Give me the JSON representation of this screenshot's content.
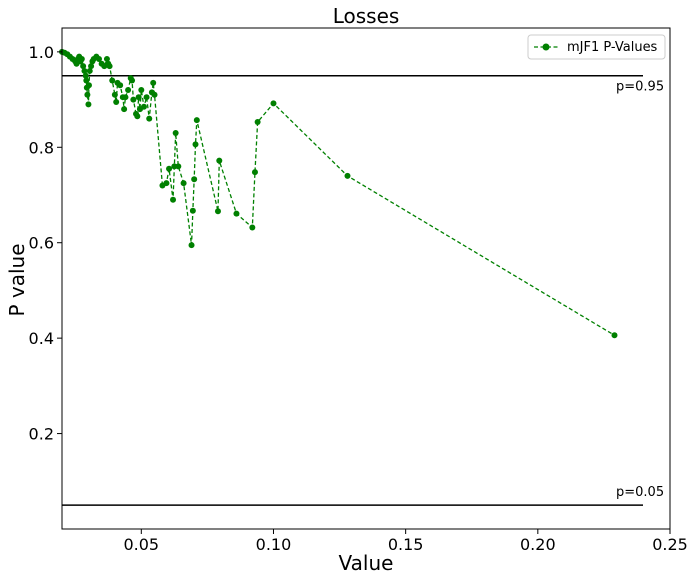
{
  "chart_data": {
    "type": "line",
    "title": "Losses",
    "xlabel": "Value",
    "ylabel": "P value",
    "xlim": [
      0.02,
      0.25
    ],
    "ylim": [
      0.0,
      1.05
    ],
    "xticks": [
      0.05,
      0.1,
      0.15,
      0.2,
      0.25
    ],
    "xtick_labels": [
      "0.05",
      "0.10",
      "0.15",
      "0.20",
      "0.25"
    ],
    "yticks": [
      0.2,
      0.4,
      0.6,
      0.8,
      1.0
    ],
    "ytick_labels": [
      "0.2",
      "0.4",
      "0.6",
      "0.8",
      "1.0"
    ],
    "grid": false,
    "legend_position": "top-right",
    "series": [
      {
        "name": "mJF1 P-Values",
        "color": "#008000",
        "line_style": "dashed",
        "marker": "circle",
        "points": [
          [
            0.02,
            1.0
          ],
          [
            0.021,
            0.998
          ],
          [
            0.022,
            0.995
          ],
          [
            0.023,
            0.99
          ],
          [
            0.024,
            0.985
          ],
          [
            0.025,
            0.98
          ],
          [
            0.0255,
            0.975
          ],
          [
            0.026,
            0.985
          ],
          [
            0.0265,
            0.99
          ],
          [
            0.027,
            0.98
          ],
          [
            0.0275,
            0.985
          ],
          [
            0.028,
            0.97
          ],
          [
            0.0285,
            0.96
          ],
          [
            0.029,
            0.95
          ],
          [
            0.0292,
            0.94
          ],
          [
            0.0294,
            0.925
          ],
          [
            0.0296,
            0.91
          ],
          [
            0.03,
            0.89
          ],
          [
            0.0302,
            0.93
          ],
          [
            0.0305,
            0.96
          ],
          [
            0.031,
            0.97
          ],
          [
            0.0315,
            0.98
          ],
          [
            0.032,
            0.985
          ],
          [
            0.033,
            0.99
          ],
          [
            0.034,
            0.985
          ],
          [
            0.035,
            0.975
          ],
          [
            0.036,
            0.97
          ],
          [
            0.037,
            0.985
          ],
          [
            0.0375,
            0.975
          ],
          [
            0.038,
            0.97
          ],
          [
            0.039,
            0.94
          ],
          [
            0.04,
            0.91
          ],
          [
            0.0405,
            0.895
          ],
          [
            0.041,
            0.935
          ],
          [
            0.042,
            0.93
          ],
          [
            0.043,
            0.905
          ],
          [
            0.0435,
            0.88
          ],
          [
            0.044,
            0.905
          ],
          [
            0.045,
            0.92
          ],
          [
            0.046,
            0.945
          ],
          [
            0.0465,
            0.94
          ],
          [
            0.047,
            0.9
          ],
          [
            0.048,
            0.87
          ],
          [
            0.0485,
            0.865
          ],
          [
            0.049,
            0.905
          ],
          [
            0.0495,
            0.88
          ],
          [
            0.05,
            0.92
          ],
          [
            0.051,
            0.885
          ],
          [
            0.052,
            0.905
          ],
          [
            0.053,
            0.86
          ],
          [
            0.054,
            0.915
          ],
          [
            0.0545,
            0.935
          ],
          [
            0.055,
            0.91
          ],
          [
            0.058,
            0.72
          ],
          [
            0.0595,
            0.725
          ],
          [
            0.0605,
            0.755
          ],
          [
            0.062,
            0.69
          ],
          [
            0.0625,
            0.76
          ],
          [
            0.063,
            0.83
          ],
          [
            0.064,
            0.76
          ],
          [
            0.066,
            0.725
          ],
          [
            0.069,
            0.595
          ],
          [
            0.0695,
            0.667
          ],
          [
            0.07,
            0.733
          ],
          [
            0.0705,
            0.806
          ],
          [
            0.071,
            0.857
          ],
          [
            0.079,
            0.666
          ],
          [
            0.0795,
            0.772
          ],
          [
            0.086,
            0.661
          ],
          [
            0.092,
            0.632
          ],
          [
            0.093,
            0.748
          ],
          [
            0.094,
            0.853
          ],
          [
            0.1,
            0.892
          ],
          [
            0.128,
            0.74
          ],
          [
            0.229,
            0.406
          ]
        ]
      }
    ],
    "reference_lines": [
      {
        "y": 0.95,
        "label": "p=0.95",
        "color": "#000000"
      },
      {
        "y": 0.05,
        "label": "p=0.05",
        "color": "#000000"
      }
    ]
  }
}
